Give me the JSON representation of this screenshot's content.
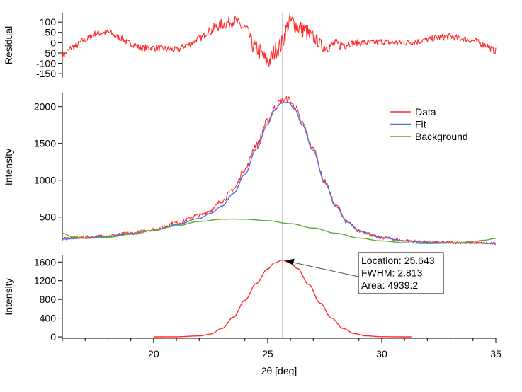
{
  "colors": {
    "data": "#ff2a2a",
    "fit": "#4a73e8",
    "background": "#5aaa32",
    "peak": "#ff2a2a",
    "marker_line": "#c8c8c8"
  },
  "chart_data": [
    {
      "id": "residual",
      "type": "line",
      "ylabel": "Residual",
      "ylim": [
        -170,
        145
      ],
      "yticks": [
        100,
        50,
        0,
        -50,
        -100,
        -150
      ],
      "ytick_labels": [
        "100",
        "50",
        "0",
        "-50",
        "-100",
        "-150"
      ],
      "series": [
        {
          "key": "residual",
          "color": "#ff2a2a",
          "x": [
            16,
            16.5,
            17,
            17.5,
            18,
            18.5,
            19,
            19.5,
            20,
            20.5,
            21,
            21.5,
            22,
            22.5,
            23,
            23.5,
            24,
            24.5,
            25,
            25.5,
            26,
            26.5,
            27,
            27.5,
            28,
            28.5,
            29,
            29.5,
            30,
            30.5,
            31,
            31.5,
            32,
            32.5,
            33,
            33.5,
            34,
            34.5,
            35
          ],
          "y": [
            -60,
            -20,
            15,
            45,
            50,
            25,
            -5,
            -25,
            -25,
            -30,
            -35,
            -10,
            20,
            60,
            90,
            105,
            70,
            -30,
            -90,
            -20,
            100,
            70,
            20,
            -20,
            -10,
            -5,
            0,
            0,
            5,
            0,
            0,
            5,
            15,
            25,
            30,
            20,
            10,
            -10,
            -40
          ]
        }
      ]
    },
    {
      "id": "main",
      "type": "line",
      "ylabel": "Intensity",
      "ylim": [
        180,
        2180
      ],
      "yticks": [
        500,
        1000,
        1500,
        2000
      ],
      "ytick_labels": [
        "500",
        "1000",
        "1500",
        "2000"
      ],
      "legend": {
        "position": "top-right",
        "entries": [
          {
            "label": "Data",
            "color": "#ff2a2a"
          },
          {
            "label": "Fit",
            "color": "#4a73e8"
          },
          {
            "label": "Background",
            "color": "#5aaa32"
          }
        ]
      },
      "series": [
        {
          "key": "data",
          "name": "Data",
          "color": "#ff2a2a",
          "x": [
            16,
            17,
            18,
            19,
            20,
            21,
            22,
            22.5,
            23,
            23.5,
            24,
            24.5,
            25,
            25.3,
            25.6,
            25.9,
            26.2,
            26.5,
            27,
            27.5,
            28,
            28.5,
            29,
            30,
            31,
            32,
            33,
            34,
            35
          ],
          "y": [
            210,
            225,
            245,
            280,
            330,
            420,
            520,
            590,
            720,
            880,
            1150,
            1480,
            1800,
            1980,
            2080,
            2100,
            2000,
            1780,
            1420,
            980,
            650,
            430,
            310,
            220,
            180,
            160,
            155,
            150,
            140
          ]
        },
        {
          "key": "fit",
          "name": "Fit",
          "color": "#4a73e8",
          "x": [
            16,
            17,
            18,
            19,
            20,
            21,
            22,
            22.5,
            23,
            23.5,
            24,
            24.5,
            25,
            25.3,
            25.6,
            25.9,
            26.2,
            26.5,
            27,
            27.5,
            28,
            28.5,
            29,
            30,
            31,
            32,
            33,
            34,
            35
          ],
          "y": [
            200,
            215,
            240,
            275,
            320,
            395,
            480,
            550,
            650,
            820,
            1080,
            1420,
            1760,
            1950,
            2050,
            2060,
            1960,
            1760,
            1400,
            970,
            640,
            430,
            310,
            220,
            175,
            155,
            150,
            145,
            140
          ]
        },
        {
          "key": "background",
          "name": "Background",
          "color": "#5aaa32",
          "x": [
            16,
            16.5,
            17,
            18,
            19,
            20,
            21,
            22,
            23,
            23.5,
            24,
            25,
            26,
            27,
            28,
            29,
            30,
            31,
            32,
            33,
            33.5,
            34,
            34.5,
            35
          ],
          "y": [
            280,
            225,
            210,
            225,
            265,
            320,
            380,
            440,
            470,
            472,
            470,
            450,
            410,
            350,
            280,
            215,
            175,
            150,
            140,
            145,
            155,
            170,
            185,
            210
          ]
        }
      ]
    },
    {
      "id": "peak",
      "type": "line",
      "ylabel": "Intensity",
      "xlabel": "2θ [deg]",
      "xlim": [
        16,
        35
      ],
      "xticks": [
        20,
        25,
        30,
        35
      ],
      "xtick_labels": [
        "20",
        "25",
        "30",
        "35"
      ],
      "ylim": [
        -30,
        1740
      ],
      "yticks": [
        0,
        400,
        800,
        1200,
        1600
      ],
      "ytick_labels": [
        "0",
        "400",
        "800",
        "1200",
        "1600"
      ],
      "annotation": {
        "lines": [
          "Location: 25.643",
          "FWHM: 2.813",
          "Area: 4939.2"
        ],
        "x": 25.643,
        "y": 1640
      },
      "series": [
        {
          "key": "peak",
          "color": "#ff2a2a",
          "x": [
            20,
            21,
            22,
            22.5,
            23,
            23.5,
            24,
            24.5,
            25,
            25.3,
            25.643,
            26,
            26.3,
            26.8,
            27.3,
            27.8,
            28.3,
            28.8,
            29.3,
            30,
            31.3
          ],
          "y": [
            0,
            2,
            20,
            60,
            180,
            420,
            780,
            1140,
            1450,
            1580,
            1640,
            1580,
            1460,
            1120,
            720,
            400,
            180,
            70,
            22,
            3,
            0
          ]
        }
      ]
    }
  ]
}
